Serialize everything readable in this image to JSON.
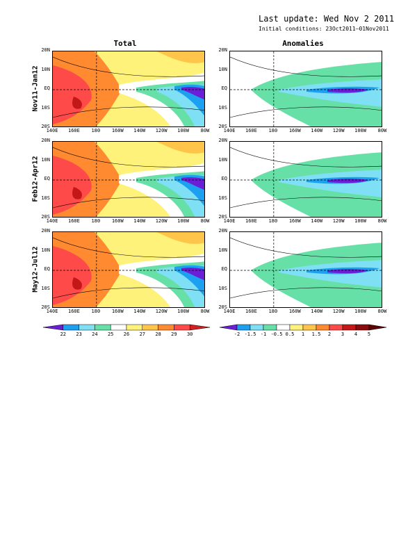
{
  "header": {
    "last_update": "Last update: Wed Nov  2 2011",
    "initial_conditions": "Initial conditions: 23Oct2011–01Nov2011"
  },
  "columns": [
    "Total",
    "Anomalies"
  ],
  "rows": [
    "Nov11-Jan12",
    "Feb12-Apr12",
    "May12-Jul12"
  ],
  "lat_ticks": [
    "20N",
    "10N",
    "EQ",
    "10S",
    "20S"
  ],
  "lon_ticks": [
    "140E",
    "160E",
    "180",
    "160W",
    "140W",
    "120W",
    "100W",
    "80W"
  ],
  "colorbar_total": {
    "labels": [
      "22",
      "23",
      "24",
      "25",
      "26",
      "27",
      "28",
      "29",
      "30"
    ],
    "colors": [
      "#6a1fd6",
      "#1ea0f0",
      "#7fe0f5",
      "#66e0a6",
      "#ffffff",
      "#fff27a",
      "#ffc44a",
      "#ff8a30",
      "#ff4a4a",
      "#d12020"
    ]
  },
  "colorbar_anom": {
    "labels": [
      "-2",
      "-1.5",
      "-1",
      "-0.5",
      "0.5",
      "1",
      "1.5",
      "2",
      "3",
      "4",
      "5"
    ],
    "colors": [
      "#6a1fd6",
      "#1ea0f0",
      "#7fe0f5",
      "#66e0a6",
      "#ffffff",
      "#fff27a",
      "#ffc44a",
      "#ff8a30",
      "#ff4a4a",
      "#c41818",
      "#8b0a0a",
      "#5a0404"
    ]
  }
}
